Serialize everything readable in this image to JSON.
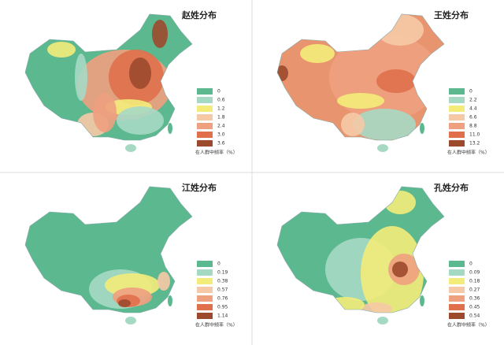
{
  "panels": [
    {
      "title": "赵姓分布",
      "legend": {
        "labels": [
          "0",
          "0.6",
          "1.2",
          "1.8",
          "2.4",
          "3.0",
          "3.6"
        ],
        "colors": [
          "#5cb88f",
          "#a6d9c4",
          "#f3ec7a",
          "#f6c9a6",
          "#eea07f",
          "#e0704c",
          "#9c4a2c"
        ],
        "caption": "在人群中频率（%）"
      }
    },
    {
      "title": "王姓分布",
      "legend": {
        "labels": [
          "0",
          "2.2",
          "4.4",
          "6.6",
          "8.8",
          "11.0",
          "13.2"
        ],
        "colors": [
          "#5cb88f",
          "#a6d9c4",
          "#f3ec7a",
          "#f6c9a6",
          "#eea07f",
          "#e0704c",
          "#9c4a2c"
        ],
        "caption": "在人群中频率（%）"
      }
    },
    {
      "title": "江姓分布",
      "legend": {
        "labels": [
          "0",
          "0.19",
          "0.38",
          "0.57",
          "0.76",
          "0.95",
          "1.14"
        ],
        "colors": [
          "#5cb88f",
          "#a6d9c4",
          "#f3ec7a",
          "#f6c9a6",
          "#eea07f",
          "#e0704c",
          "#9c4a2c"
        ],
        "caption": "在人群中频率（%）"
      }
    },
    {
      "title": "孔姓分布",
      "legend": {
        "labels": [
          "0",
          "0.09",
          "0.18",
          "0.27",
          "0.36",
          "0.45",
          "0.54"
        ],
        "colors": [
          "#5cb88f",
          "#a6d9c4",
          "#f3ec7a",
          "#f6c9a6",
          "#eea07f",
          "#e0704c",
          "#9c4a2c"
        ],
        "caption": "在人群中频率（%）"
      }
    }
  ]
}
